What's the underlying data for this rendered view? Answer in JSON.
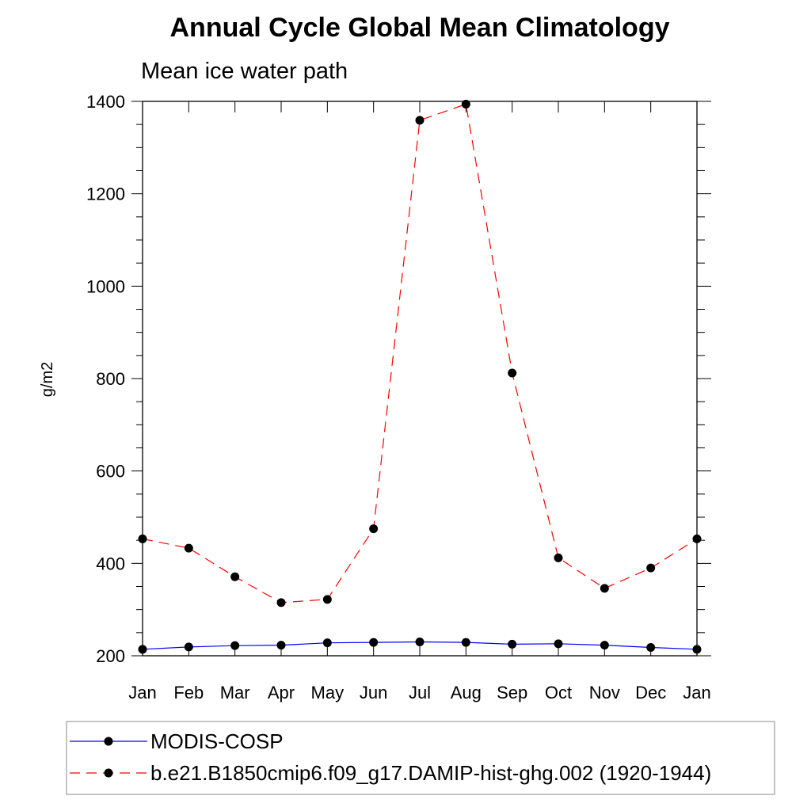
{
  "chart_data": {
    "type": "line",
    "title": "Annual Cycle Global Mean Climatology",
    "subtitle": "Mean ice water path",
    "xlabel": "",
    "ylabel": "g/m2",
    "categories": [
      "Jan",
      "Feb",
      "Mar",
      "Apr",
      "May",
      "Jun",
      "Jul",
      "Aug",
      "Sep",
      "Oct",
      "Nov",
      "Dec",
      "Jan"
    ],
    "yticks": [
      "200",
      "400",
      "600",
      "800",
      "1000",
      "1200",
      "1400"
    ],
    "ylim": [
      200,
      1400
    ],
    "grid": false,
    "legend_position": "bottom",
    "series": [
      {
        "name": "MODIS-COSP",
        "color": "#0000ff",
        "dash": "solid",
        "marker": "filled-circle",
        "values": [
          214,
          219,
          222,
          223,
          228,
          229,
          230,
          229,
          225,
          226,
          223,
          218,
          214
        ]
      },
      {
        "name": "b.e21.B1850cmip6.f09_g17.DAMIP-hist-ghg.002 (1920-1944)",
        "color": "#ff0000",
        "dash": "dashed",
        "marker": "filled-circle",
        "values": [
          453,
          433,
          371,
          315,
          322,
          475,
          1359,
          1394,
          812,
          412,
          346,
          390,
          453
        ]
      }
    ]
  }
}
